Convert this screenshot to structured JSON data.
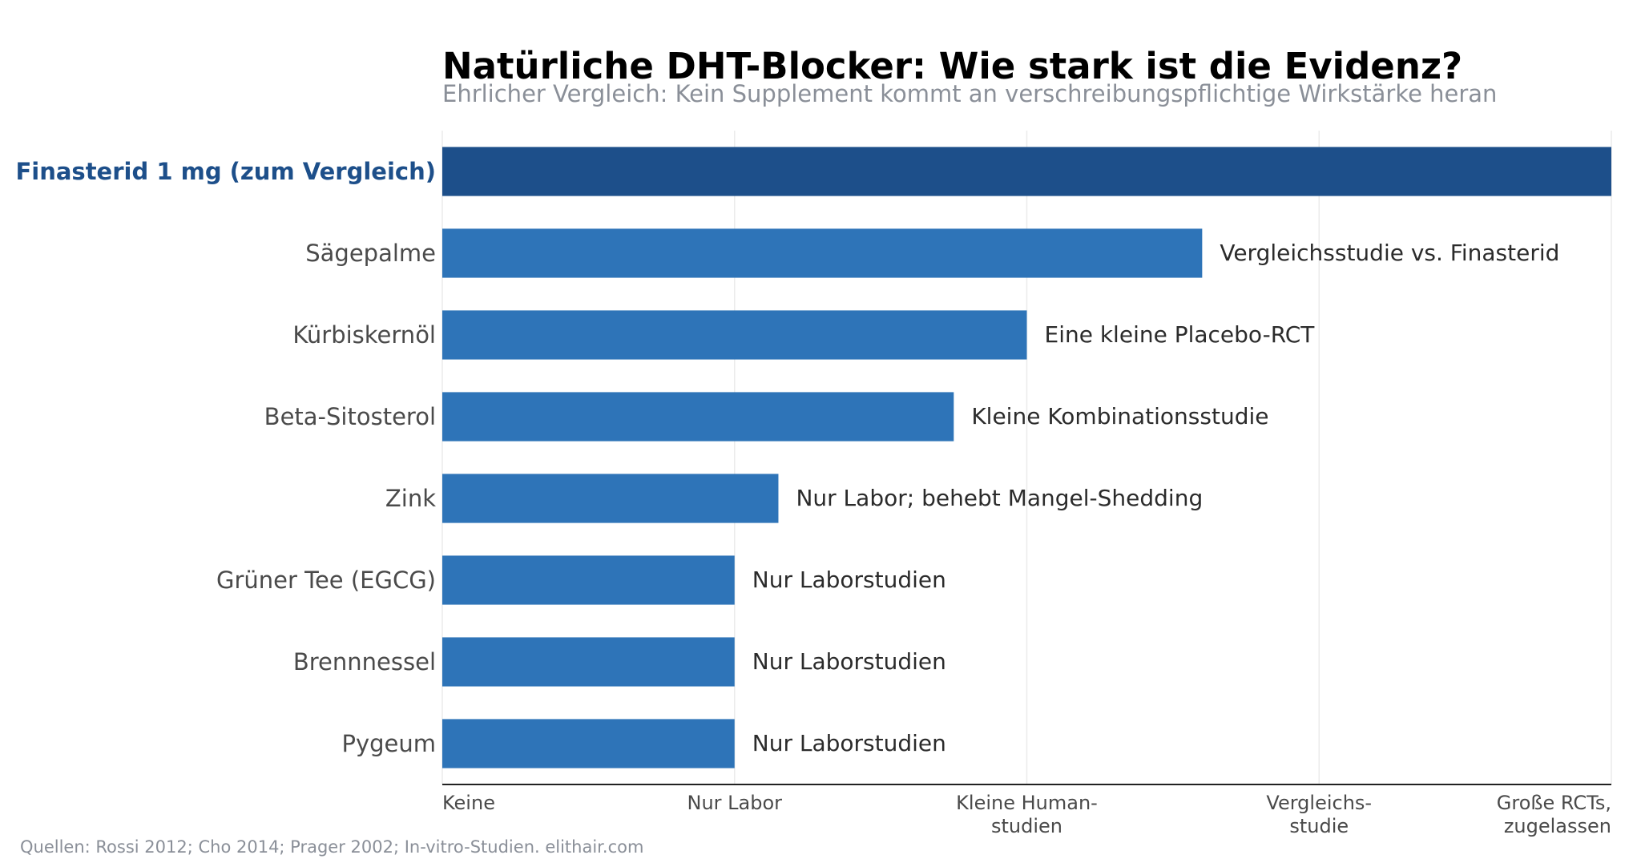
{
  "chart_data": {
    "type": "bar",
    "orientation": "horizontal",
    "title": "Natürliche DHT-Blocker: Wie stark ist die Evidenz?",
    "subtitle": "Ehrlicher Vergleich: Kein Supplement kommt an verschreibungspflichtige Wirkstärke heran",
    "source": "Quellen: Rossi 2012; Cho 2014; Prager 2002; In-vitro-Studien. elithair.com",
    "categories": [
      "Finasterid 1 mg (zum Vergleich)",
      "Sägepalme",
      "Kürbiskernöl",
      "Beta-Sitosterol",
      "Zink",
      "Grüner Tee (EGCG)",
      "Brennnessel",
      "Pygeum"
    ],
    "values": [
      4.0,
      2.6,
      2.0,
      1.75,
      1.15,
      1.0,
      1.0,
      1.0
    ],
    "annotations": [
      "",
      "Vergleichsstudie vs. Finasterid",
      "Eine kleine Placebo-RCT",
      "Kleine Kombinationsstudie",
      "Nur Labor; behebt Mangel-Shedding",
      "Nur Laborstudien",
      "Nur Laborstudien",
      "Nur Laborstudien"
    ],
    "highlight_index": 0,
    "xlim": [
      0,
      4
    ],
    "x_ticks": [
      0,
      1,
      2,
      3,
      4
    ],
    "x_tick_labels": [
      [
        "Keine"
      ],
      [
        "Nur Labor"
      ],
      [
        "Kleine Human-",
        "studien"
      ],
      [
        "Vergleichs-",
        "studie"
      ],
      [
        "Große RCTs,",
        "zugelassen"
      ]
    ],
    "grid": "vertical",
    "colors": {
      "bar": "#2e74b8",
      "highlight_bar": "#1d4f8a",
      "highlight_label": "#1d4f8a",
      "grid": "#ebebeb",
      "axis": "#222222"
    }
  }
}
